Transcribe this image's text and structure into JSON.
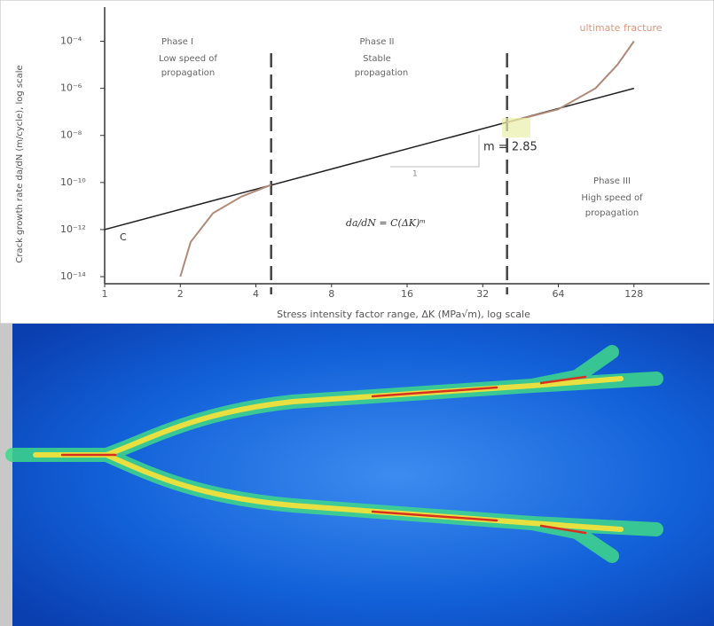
{
  "chart_data": {
    "type": "line",
    "log_x": true,
    "log_y": true,
    "x_label": "Stress intensity factor range, ΔK (MPa√m), log scale",
    "y_label": "Crack growth rate da/dN (m/cycle), log scale",
    "xlim": [
      1,
      256
    ],
    "ylim": [
      5e-15,
      0.001
    ],
    "xticks": [
      1,
      2,
      4,
      8,
      16,
      32,
      64,
      128
    ],
    "yticks": [
      {
        "value": 0.0001,
        "label": "10⁻⁴"
      },
      {
        "value": 1e-06,
        "label": "10⁻⁶"
      },
      {
        "value": 1e-08,
        "label": "10⁻⁸"
      },
      {
        "value": 1e-10,
        "label": "10⁻¹⁰"
      },
      {
        "value": 1e-12,
        "label": "10⁻¹²"
      },
      {
        "value": 1e-14,
        "label": "10⁻¹⁴"
      }
    ],
    "series": [
      {
        "color": "#222222",
        "x": [
          1,
          128
        ],
        "values": [
          1e-12,
          1e-06
        ]
      },
      {
        "color": "#b08a78",
        "x": [
          2,
          2.2,
          2.7,
          3.5,
          4.6,
          null,
          40,
          64,
          90,
          110,
          128
        ],
        "values": [
          1e-14,
          3e-13,
          5e-12,
          2.5e-11,
          8e-11,
          null,
          3.6e-08,
          1.3e-07,
          1e-06,
          1e-05,
          0.0001
        ]
      }
    ],
    "phase_boundaries": [
      4.6,
      40
    ],
    "annotations": [
      "Phase I",
      "Low speed of",
      "propagation",
      "Phase II",
      "Stable",
      "propagation",
      "Phase III",
      "High speed of",
      "propagation",
      "ultimate fracture",
      "C",
      "m = 2.85",
      "1",
      "da/dN = C(ΔK)ᵐ"
    ]
  }
}
